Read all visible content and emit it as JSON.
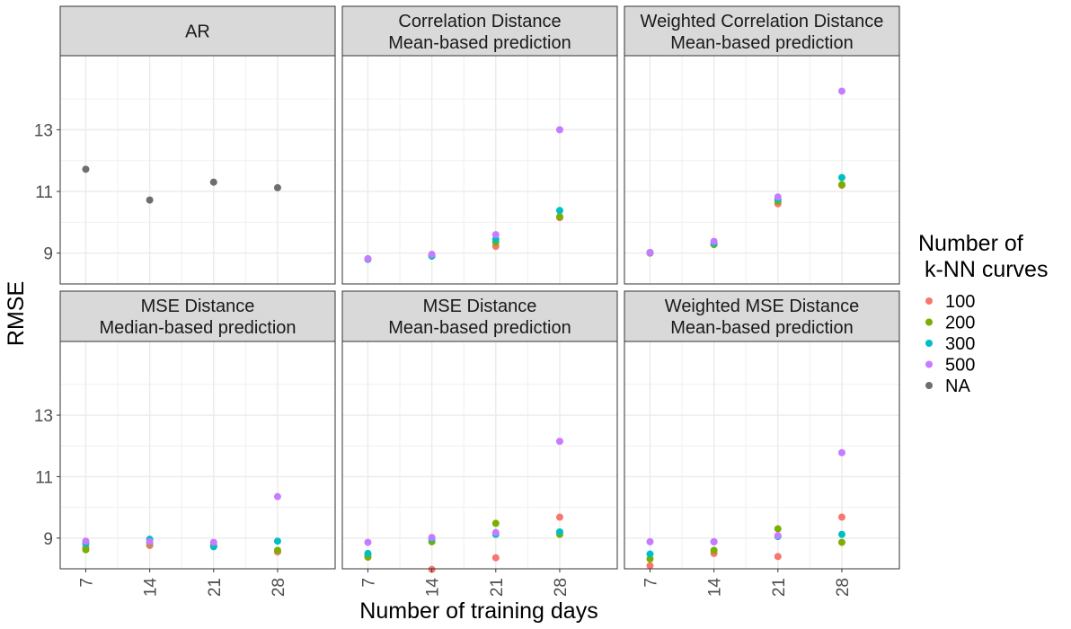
{
  "chart_data": {
    "type": "scatter",
    "xlabel": "Number of training days",
    "ylabel": "RMSE",
    "x_ticks": [
      7,
      14,
      21,
      28
    ],
    "y_ticks": [
      9,
      11,
      13
    ],
    "xlim": [
      4.2,
      34.3
    ],
    "ylim": [
      8.0,
      15.4
    ],
    "grid": true,
    "legend": {
      "title_line1": "Number of",
      "title_line2": " k-NN curves",
      "placement": "right",
      "entries": [
        {
          "key": "100",
          "label": "100",
          "color": "#F8766D"
        },
        {
          "key": "200",
          "label": "200",
          "color": "#7CAE00"
        },
        {
          "key": "300",
          "label": "300",
          "color": "#00BFC4"
        },
        {
          "key": "500",
          "label": "500",
          "color": "#C77CFF"
        },
        {
          "key": "NA",
          "label": "NA",
          "color": "#6E6E6E"
        }
      ]
    },
    "facets": [
      {
        "title_line1": "AR",
        "title_line2": "",
        "points": [
          {
            "series": "NA",
            "x": 7,
            "y": 11.72
          },
          {
            "series": "NA",
            "x": 14,
            "y": 10.72
          },
          {
            "series": "NA",
            "x": 21,
            "y": 11.3
          },
          {
            "series": "NA",
            "x": 28,
            "y": 11.12
          }
        ]
      },
      {
        "title_line1": "Correlation Distance",
        "title_line2": "Mean-based prediction",
        "points": [
          {
            "series": "100",
            "x": 7,
            "y": 8.8
          },
          {
            "series": "200",
            "x": 7,
            "y": 8.8
          },
          {
            "series": "300",
            "x": 7,
            "y": 8.8
          },
          {
            "series": "500",
            "x": 7,
            "y": 8.82
          },
          {
            "series": "100",
            "x": 14,
            "y": 8.92
          },
          {
            "series": "200",
            "x": 14,
            "y": 8.92
          },
          {
            "series": "300",
            "x": 14,
            "y": 8.9
          },
          {
            "series": "500",
            "x": 14,
            "y": 8.96
          },
          {
            "series": "100",
            "x": 21,
            "y": 9.22
          },
          {
            "series": "200",
            "x": 21,
            "y": 9.35
          },
          {
            "series": "300",
            "x": 21,
            "y": 9.45
          },
          {
            "series": "500",
            "x": 21,
            "y": 9.6
          },
          {
            "series": "100",
            "x": 28,
            "y": 10.15
          },
          {
            "series": "200",
            "x": 28,
            "y": 10.18
          },
          {
            "series": "300",
            "x": 28,
            "y": 10.38
          },
          {
            "series": "500",
            "x": 28,
            "y": 13.0
          }
        ]
      },
      {
        "title_line1": "Weighted Correlation Distance",
        "title_line2": "Mean-based prediction",
        "points": [
          {
            "series": "100",
            "x": 7,
            "y": 9.0
          },
          {
            "series": "200",
            "x": 7,
            "y": 9.0
          },
          {
            "series": "300",
            "x": 7,
            "y": 9.02
          },
          {
            "series": "500",
            "x": 7,
            "y": 9.02
          },
          {
            "series": "100",
            "x": 14,
            "y": 9.28
          },
          {
            "series": "200",
            "x": 14,
            "y": 9.28
          },
          {
            "series": "300",
            "x": 14,
            "y": 9.32
          },
          {
            "series": "500",
            "x": 14,
            "y": 9.38
          },
          {
            "series": "100",
            "x": 21,
            "y": 10.6
          },
          {
            "series": "200",
            "x": 21,
            "y": 10.68
          },
          {
            "series": "300",
            "x": 21,
            "y": 10.75
          },
          {
            "series": "500",
            "x": 21,
            "y": 10.82
          },
          {
            "series": "100",
            "x": 28,
            "y": 11.2
          },
          {
            "series": "200",
            "x": 28,
            "y": 11.22
          },
          {
            "series": "300",
            "x": 28,
            "y": 11.45
          },
          {
            "series": "500",
            "x": 28,
            "y": 14.25
          }
        ]
      },
      {
        "title_line1": "MSE Distance",
        "title_line2": "Median-based prediction",
        "points": [
          {
            "series": "100",
            "x": 7,
            "y": 8.7
          },
          {
            "series": "200",
            "x": 7,
            "y": 8.62
          },
          {
            "series": "300",
            "x": 7,
            "y": 8.82
          },
          {
            "series": "500",
            "x": 7,
            "y": 8.9
          },
          {
            "series": "100",
            "x": 14,
            "y": 8.76
          },
          {
            "series": "200",
            "x": 14,
            "y": 8.84
          },
          {
            "series": "300",
            "x": 14,
            "y": 8.96
          },
          {
            "series": "500",
            "x": 14,
            "y": 8.88
          },
          {
            "series": "100",
            "x": 21,
            "y": 8.73
          },
          {
            "series": "200",
            "x": 21,
            "y": 8.75
          },
          {
            "series": "300",
            "x": 21,
            "y": 8.72
          },
          {
            "series": "500",
            "x": 21,
            "y": 8.86
          },
          {
            "series": "100",
            "x": 28,
            "y": 8.55
          },
          {
            "series": "200",
            "x": 28,
            "y": 8.6
          },
          {
            "series": "300",
            "x": 28,
            "y": 8.9
          },
          {
            "series": "500",
            "x": 28,
            "y": 10.35
          }
        ]
      },
      {
        "title_line1": "MSE Distance",
        "title_line2": "Mean-based prediction",
        "points": [
          {
            "series": "100",
            "x": 7,
            "y": 8.45
          },
          {
            "series": "200",
            "x": 7,
            "y": 8.38
          },
          {
            "series": "300",
            "x": 7,
            "y": 8.5
          },
          {
            "series": "500",
            "x": 7,
            "y": 8.86
          },
          {
            "series": "100",
            "x": 14,
            "y": 7.98
          },
          {
            "series": "200",
            "x": 14,
            "y": 8.88
          },
          {
            "series": "300",
            "x": 14,
            "y": 8.98
          },
          {
            "series": "500",
            "x": 14,
            "y": 9.02
          },
          {
            "series": "100",
            "x": 21,
            "y": 8.36
          },
          {
            "series": "200",
            "x": 21,
            "y": 9.48
          },
          {
            "series": "300",
            "x": 21,
            "y": 9.12
          },
          {
            "series": "500",
            "x": 21,
            "y": 9.18
          },
          {
            "series": "100",
            "x": 28,
            "y": 9.68
          },
          {
            "series": "200",
            "x": 28,
            "y": 9.12
          },
          {
            "series": "300",
            "x": 28,
            "y": 9.2
          },
          {
            "series": "500",
            "x": 28,
            "y": 12.15
          }
        ]
      },
      {
        "title_line1": "Weighted MSE Distance",
        "title_line2": "Mean-based prediction",
        "points": [
          {
            "series": "100",
            "x": 7,
            "y": 8.1
          },
          {
            "series": "200",
            "x": 7,
            "y": 8.32
          },
          {
            "series": "300",
            "x": 7,
            "y": 8.48
          },
          {
            "series": "500",
            "x": 7,
            "y": 8.88
          },
          {
            "series": "100",
            "x": 14,
            "y": 8.5
          },
          {
            "series": "200",
            "x": 14,
            "y": 8.6
          },
          {
            "series": "300",
            "x": 14,
            "y": 8.88
          },
          {
            "series": "500",
            "x": 14,
            "y": 8.88
          },
          {
            "series": "100",
            "x": 21,
            "y": 8.4
          },
          {
            "series": "200",
            "x": 21,
            "y": 9.3
          },
          {
            "series": "300",
            "x": 21,
            "y": 9.05
          },
          {
            "series": "500",
            "x": 21,
            "y": 9.08
          },
          {
            "series": "100",
            "x": 28,
            "y": 9.68
          },
          {
            "series": "200",
            "x": 28,
            "y": 8.86
          },
          {
            "series": "300",
            "x": 28,
            "y": 9.12
          },
          {
            "series": "500",
            "x": 28,
            "y": 11.78
          }
        ]
      }
    ]
  }
}
